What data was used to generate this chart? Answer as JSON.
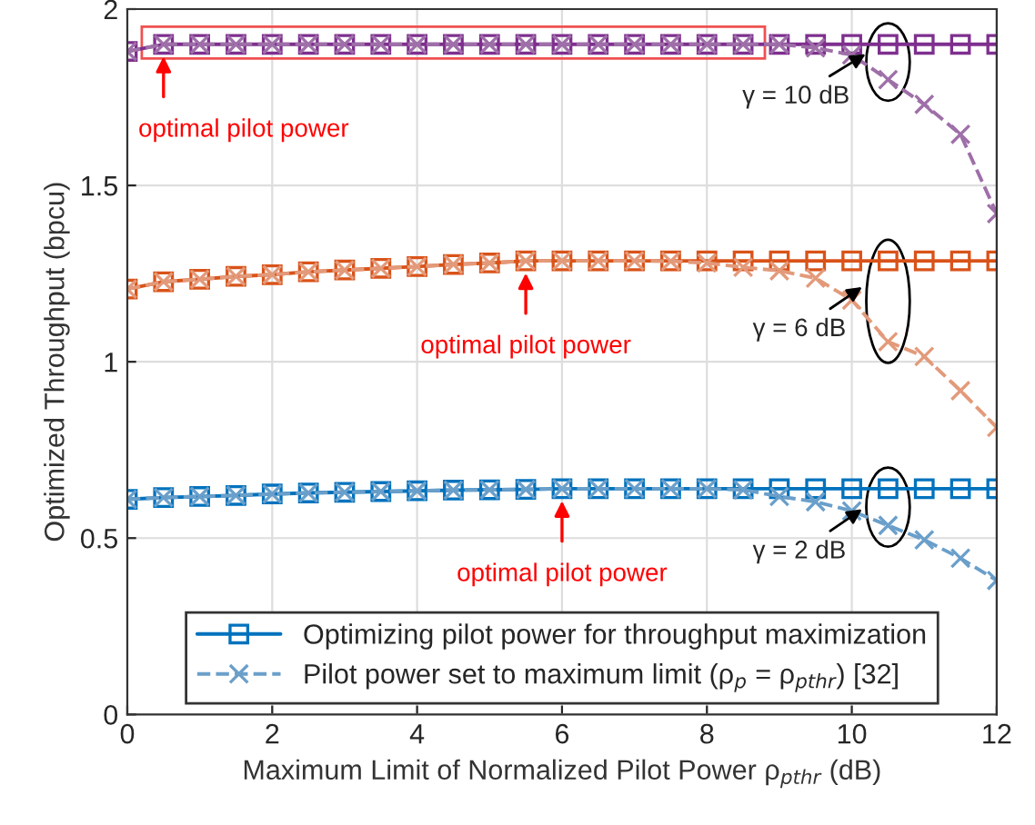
{
  "chart_data": {
    "type": "line",
    "xlabel": "Maximum Limit of Normalized Pilot Power ρ$_{pthr}$ (dB)",
    "ylabel": "Optimized Throughput (bpcu)",
    "x": [
      0,
      0.5,
      1,
      1.5,
      2,
      2.5,
      3,
      3.5,
      4,
      4.5,
      5,
      5.5,
      6,
      6.5,
      7,
      7.5,
      8,
      8.5,
      9,
      9.5,
      10,
      10.5,
      11,
      11.5,
      12
    ],
    "series": [
      {
        "name": "Optimizing pilot power for throughput maximization",
        "color": "#0072bd",
        "marker": "square",
        "line_style": "solid",
        "values": [
          0.61,
          0.615,
          0.618,
          0.621,
          0.625,
          0.628,
          0.63,
          0.632,
          0.634,
          0.636,
          0.637,
          0.638,
          0.64,
          0.64,
          0.64,
          0.64,
          0.64,
          0.64,
          0.64,
          0.64,
          0.64,
          0.64,
          0.64,
          0.64,
          0.64
        ]
      },
      {
        "name": "Pilot power set to maximum limit (ρ$_{p}$ = ρ$_{pthr}$) [32]",
        "color": "#6a9fca",
        "marker": "cross",
        "line_style": "dashed",
        "values": [
          0.61,
          0.615,
          0.618,
          0.621,
          0.625,
          0.628,
          0.63,
          0.632,
          0.634,
          0.636,
          0.637,
          0.638,
          0.64,
          0.64,
          0.64,
          0.64,
          0.64,
          0.637,
          0.618,
          0.603,
          0.577,
          0.536,
          0.495,
          0.443,
          0.38
        ]
      },
      {
        "color": "#d95319",
        "marker": "square",
        "line_style": "solid",
        "values": [
          1.206,
          1.227,
          1.234,
          1.242,
          1.247,
          1.255,
          1.26,
          1.265,
          1.27,
          1.276,
          1.28,
          1.286,
          1.286,
          1.286,
          1.286,
          1.286,
          1.286,
          1.286,
          1.286,
          1.286,
          1.286,
          1.286,
          1.286,
          1.286,
          1.286
        ]
      },
      {
        "color": "#e39a7a",
        "marker": "cross",
        "line_style": "dashed",
        "values": [
          1.206,
          1.227,
          1.234,
          1.242,
          1.247,
          1.255,
          1.26,
          1.265,
          1.27,
          1.276,
          1.28,
          1.286,
          1.286,
          1.286,
          1.286,
          1.285,
          1.28,
          1.268,
          1.258,
          1.237,
          1.175,
          1.057,
          1.015,
          0.918,
          0.814
        ]
      },
      {
        "color": "#7e2f8e",
        "marker": "square",
        "line_style": "solid",
        "values": [
          1.88,
          1.9,
          1.9,
          1.9,
          1.9,
          1.9,
          1.9,
          1.9,
          1.9,
          1.9,
          1.9,
          1.9,
          1.9,
          1.9,
          1.9,
          1.9,
          1.9,
          1.9,
          1.9,
          1.9,
          1.9,
          1.9,
          1.9,
          1.9,
          1.9
        ]
      },
      {
        "color": "#9e6fa8",
        "marker": "cross",
        "line_style": "dashed",
        "values": [
          1.88,
          1.9,
          1.9,
          1.9,
          1.9,
          1.9,
          1.9,
          1.9,
          1.9,
          1.9,
          1.9,
          1.9,
          1.9,
          1.9,
          1.9,
          1.9,
          1.9,
          1.9,
          1.9,
          1.89,
          1.87,
          1.8,
          1.73,
          1.645,
          1.42
        ]
      }
    ],
    "annotations": [
      {
        "text": "optimal pilot power",
        "x": 0.5,
        "y": 1.9
      },
      {
        "text": "optimal pilot power",
        "x": 5.5,
        "y": 1.286
      },
      {
        "text": "optimal pilot power",
        "x": 6,
        "y": 0.64
      },
      {
        "text": "γ = 10 dB",
        "x": 10.25,
        "y": 1.88
      },
      {
        "text": "γ = 6 dB",
        "x": 10.2,
        "y": 1.22
      },
      {
        "text": "γ = 2 dB",
        "x": 10.2,
        "y": 0.59
      }
    ],
    "xlim": [
      0,
      12
    ],
    "xticks": [
      0,
      2,
      4,
      6,
      8,
      10,
      12
    ],
    "ylim": [
      0,
      2
    ],
    "yticks": [
      0,
      0.5,
      1,
      1.5,
      2
    ],
    "grid": true,
    "legend": "bottom"
  }
}
